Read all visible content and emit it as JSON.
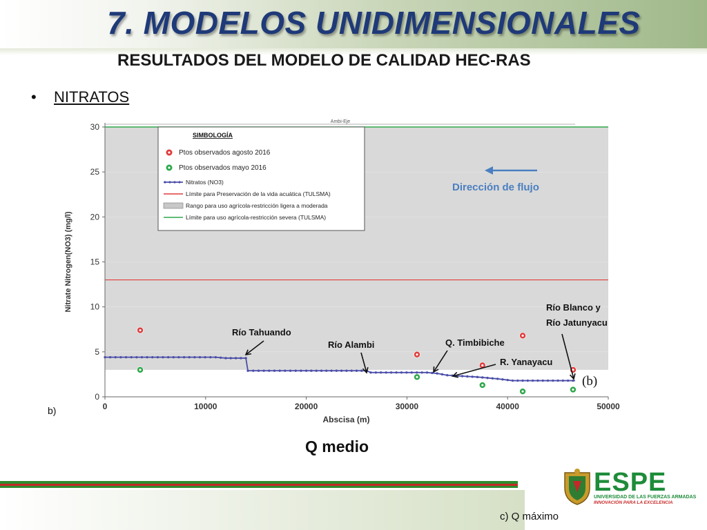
{
  "slide": {
    "title": "7. MODELOS UNIDIMENSIONALES",
    "subtitle": "RESULTADOS DEL MODELO DE CALIDAD HEC-RAS",
    "bullet": "NITRATOS",
    "label_b": "b)",
    "caption": "Q medio",
    "caption_c": "c) Q máximo"
  },
  "logo": {
    "name": "ESPE",
    "line1": "UNIVERSIDAD DE LAS FUERZAS ARMADAS",
    "line2": "INNOVACIÓN PARA LA EXCELENCIA"
  },
  "chart_data": {
    "type": "line",
    "ylabel": "Nitrate Nitrogen(NO3) (mg/l)",
    "xlabel": "Abscisa (m)",
    "top_label": "Ambi-Eje",
    "xlim": [
      0,
      50000
    ],
    "ylim": [
      0,
      30
    ],
    "x_ticks": [
      0,
      10000,
      20000,
      30000,
      40000,
      50000
    ],
    "y_ticks": [
      0,
      5,
      10,
      15,
      20,
      25,
      30
    ],
    "legend": {
      "title": "SIMBOLOGÍA",
      "placement": "top-left",
      "entries": [
        "Ptos observados agosto 2016",
        "Ptos observados mayo 2016",
        "Nitratos (NO3)",
        "Límite para Preservación de la vida acuática (TULSMA)",
        "Rango para uso agrícola-restricción ligera a moderada",
        "Límite para uso agrícola-restricción severa (TULSMA)"
      ]
    },
    "series": [
      {
        "name": "Nitratos (NO3)",
        "color": "#4b4ea8",
        "x": [
          0,
          11000,
          12000,
          14000,
          14200,
          20000,
          26000,
          26400,
          32000,
          33000,
          34000,
          37000,
          39000,
          40500,
          44000,
          46500,
          46700
        ],
        "y": [
          4.4,
          4.4,
          4.3,
          4.3,
          2.9,
          2.9,
          2.9,
          2.7,
          2.7,
          2.6,
          2.4,
          2.2,
          2.0,
          1.8,
          1.8,
          1.8,
          1.8
        ]
      },
      {
        "name": "Ptos observados agosto 2016",
        "color": "#e03c3c",
        "x": [
          3500,
          31000,
          37500,
          41500,
          46500
        ],
        "y": [
          7.4,
          4.7,
          3.5,
          6.8,
          3.0
        ]
      },
      {
        "name": "Ptos observados mayo 2016",
        "color": "#2ea84a",
        "x": [
          3500,
          31000,
          37500,
          41500,
          46500
        ],
        "y": [
          3.0,
          2.2,
          1.3,
          0.6,
          0.8
        ]
      }
    ],
    "limits": {
      "preservacion_vida_acuatica": 13,
      "rango_agricola": [
        3,
        30
      ],
      "restriccion_severa": 30
    },
    "annotations": {
      "flow_direction": "Dirección de flujo",
      "tributaries": [
        "Río Tahuando",
        "Río Alambi",
        "Q.  Timbibiche",
        "R.  Yanayacu",
        "Río Blanco y",
        "Río Jatunyacu"
      ],
      "panel_label": "(b)"
    },
    "colors": {
      "gray_band": "#d9d9d9",
      "red_limit": "#e03c3c",
      "green_limit": "#2ea84a",
      "flow_arrow": "#4a7fc1"
    }
  }
}
